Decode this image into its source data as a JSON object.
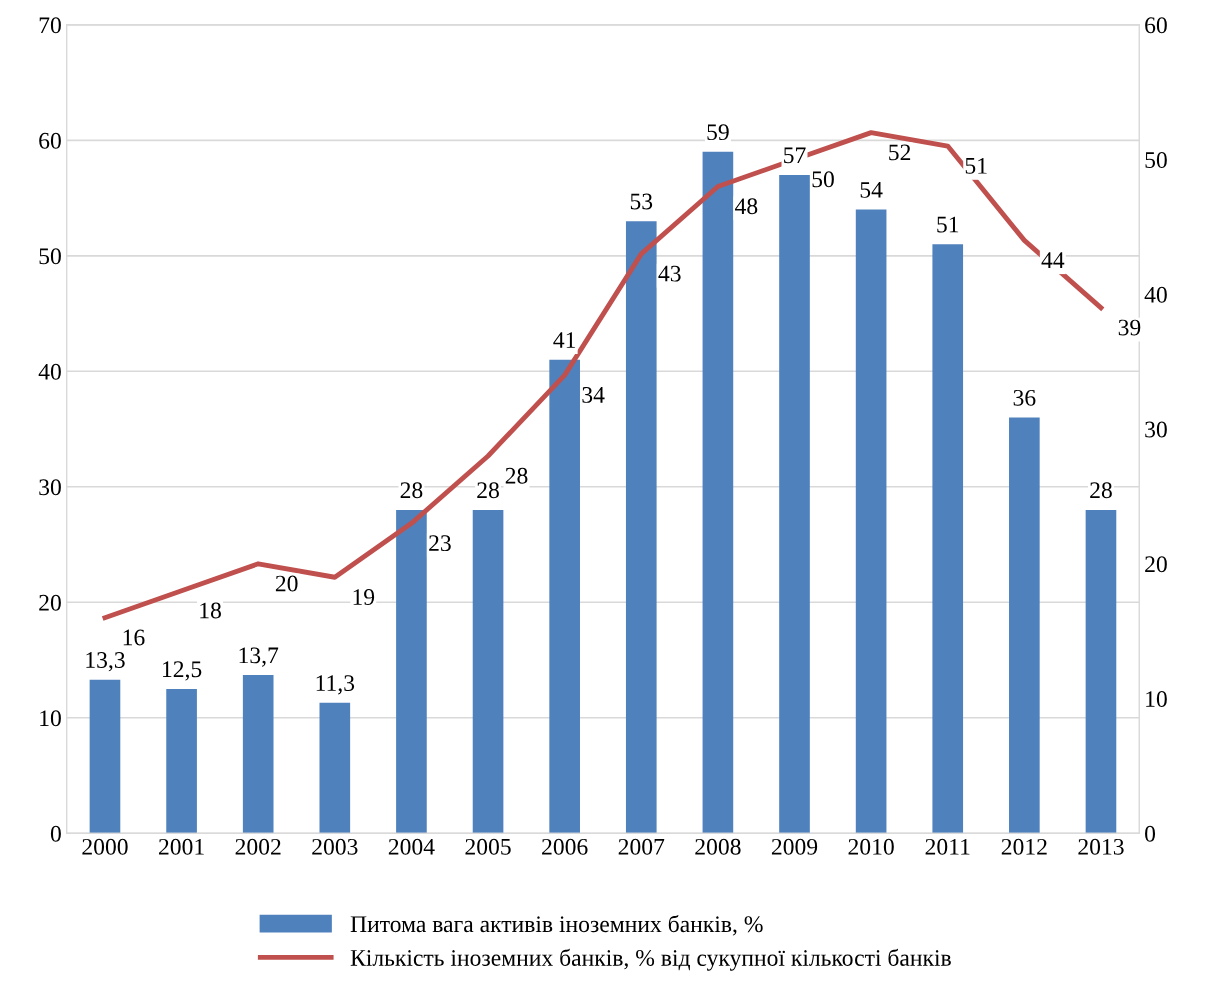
{
  "chart_data": {
    "type": "bar",
    "categories": [
      "2000",
      "2001",
      "2002",
      "2003",
      "2004",
      "2005",
      "2006",
      "2007",
      "2008",
      "2009",
      "2010",
      "2011",
      "2012",
      "2013"
    ],
    "series": [
      {
        "name": "Питома вага активів іноземних банків, %",
        "color": "#4f81bd",
        "values": [
          13.3,
          12.5,
          13.7,
          11.3,
          28,
          28,
          41,
          53,
          59,
          57,
          54,
          51,
          36,
          28
        ],
        "value_labels": [
          "13,3",
          "12,5",
          "13,7",
          "11,3",
          "28",
          "28",
          "41",
          "53",
          "59",
          "57",
          "54",
          "51",
          "36",
          "28"
        ]
      },
      {
        "name": "Кількість іноземних банків, % від сукупної кількості банків",
        "type": "line",
        "axis": "y2",
        "color": "#c0504d",
        "values": [
          16,
          18,
          20,
          19,
          23,
          28,
          34,
          43,
          48,
          50,
          52,
          51,
          44,
          39
        ],
        "value_labels": [
          "16",
          "18",
          "20",
          "19",
          "23",
          "28",
          "34",
          "43",
          "48",
          "50",
          "52",
          "51",
          "44",
          "39"
        ]
      }
    ],
    "ylim": [
      0,
      70
    ],
    "yticks": [
      0,
      10,
      20,
      30,
      40,
      50,
      60,
      70
    ],
    "y2lim": [
      0,
      60
    ],
    "y2ticks": [
      0,
      10,
      20,
      30,
      40,
      50,
      60
    ],
    "grid": "y",
    "legend": "bottom",
    "marker": "none",
    "line_style": "solid"
  }
}
